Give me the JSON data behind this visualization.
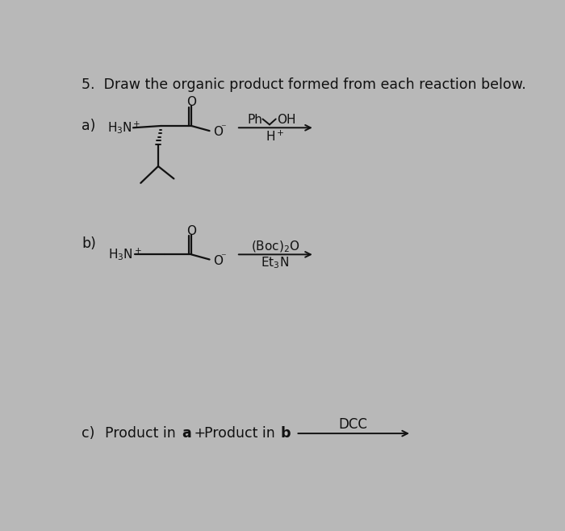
{
  "bg_color": "#b8b8b8",
  "title": "5.  Draw the organic product formed from each reaction below.",
  "title_fontsize": 12.5,
  "label_a": "a)",
  "label_b": "b)",
  "label_c": "c)",
  "label_fontsize": 12.5,
  "line_color": "#111111",
  "text_color": "#111111"
}
